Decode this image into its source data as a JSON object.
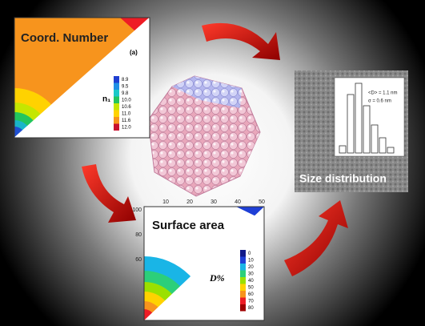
{
  "panels": [
    {
      "title": "Coord. Number",
      "tag": "(a)",
      "legend_title": "n₁",
      "legend": [
        "8.9",
        "9.5",
        "9.8",
        "10.0",
        "10.6",
        "11.0",
        "11.6",
        "12.0"
      ]
    },
    {
      "title": "Size distribution",
      "stats": [
        "<D> = 1.1 nm",
        "σ = 0.6 nm"
      ]
    },
    {
      "title": "Surface area",
      "legend_title": "D%",
      "legend": [
        "0",
        "10",
        "20",
        "30",
        "40",
        "50",
        "60",
        "70",
        "80"
      ],
      "top_ticks": [
        "10",
        "20",
        "30",
        "40",
        "50"
      ],
      "left_ticks": [
        "100",
        "80",
        "60"
      ]
    }
  ]
}
